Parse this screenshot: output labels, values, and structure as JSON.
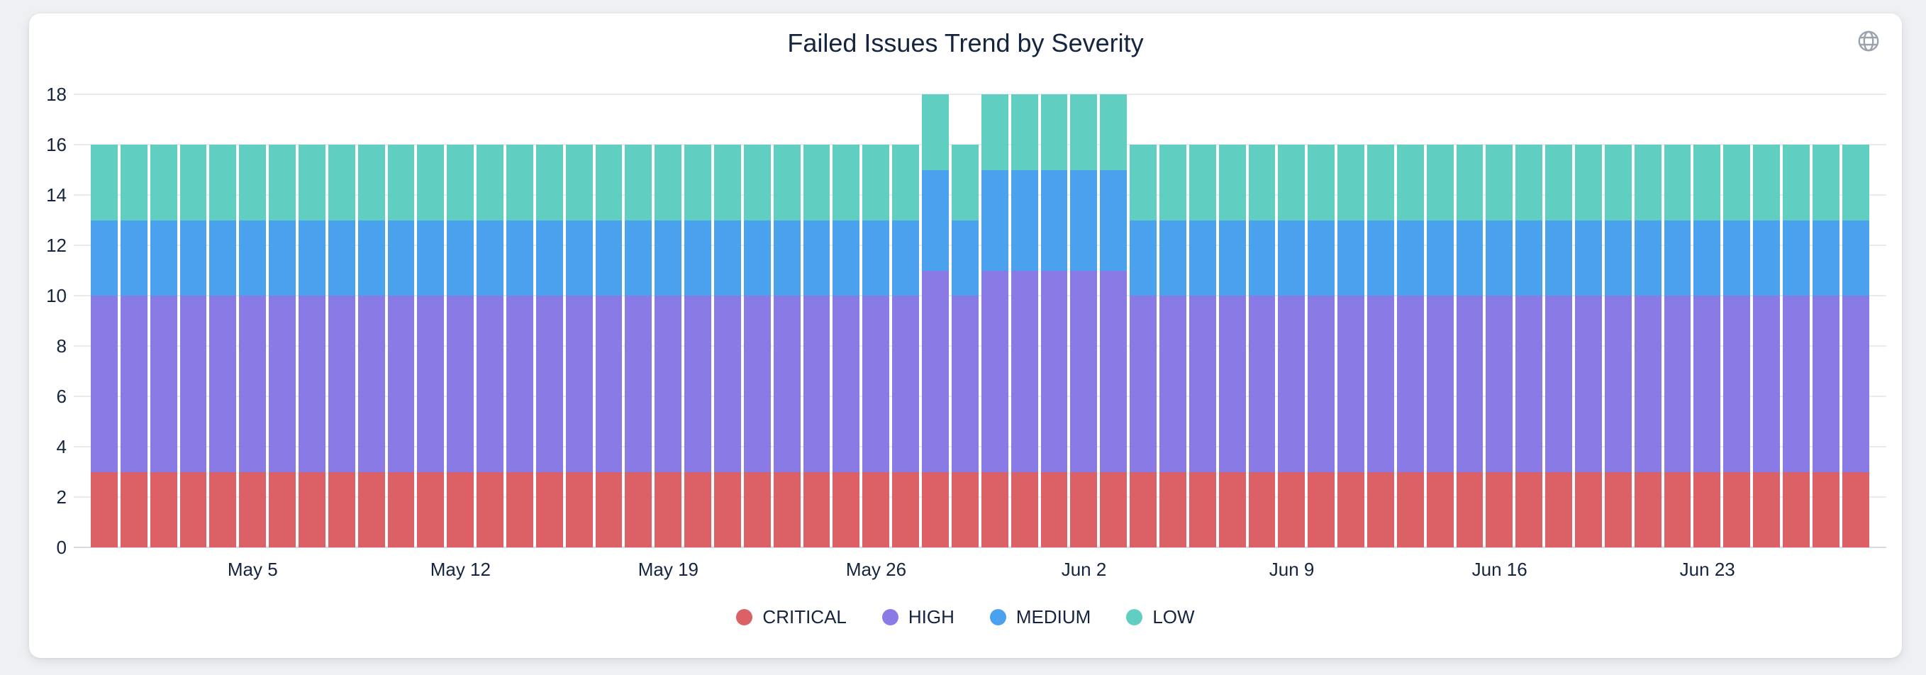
{
  "card": {
    "title": "Failed Issues Trend by Severity"
  },
  "icons": {
    "top_right": "globe-icon"
  },
  "colors": {
    "page_background": "#eef0f3",
    "card_background": "#ffffff",
    "text": "#15253f",
    "gridline": "#e9ebef",
    "axis_baseline": "#d7dce4",
    "icon_gray": "#9aa2ac",
    "critical": "#db6167",
    "high": "#8a7ae6",
    "medium": "#4aa2ee",
    "low": "#60cfc2"
  },
  "chart_data": {
    "type": "bar",
    "stacked": true,
    "title": "Failed Issues Trend by Severity",
    "grid": "horizontal",
    "bar_count": 60,
    "y_axis": {
      "range": [
        0,
        18
      ],
      "ticks": [
        0,
        2,
        4,
        6,
        8,
        10,
        12,
        14,
        16,
        18
      ]
    },
    "x_axis": {
      "tick_labels": [
        "May 5",
        "May 12",
        "May 19",
        "May 26",
        "Jun 2",
        "Jun 9",
        "Jun 16",
        "Jun 23"
      ],
      "tick_bar_indices": [
        5,
        12,
        19,
        26,
        33,
        40,
        47,
        54
      ]
    },
    "legend": {
      "position": "bottom",
      "labels": [
        "CRITICAL",
        "HIGH",
        "MEDIUM",
        "LOW"
      ]
    },
    "series": [
      {
        "name": "CRITICAL",
        "color": "#db6167",
        "values": [
          3,
          3,
          3,
          3,
          3,
          3,
          3,
          3,
          3,
          3,
          3,
          3,
          3,
          3,
          3,
          3,
          3,
          3,
          3,
          3,
          3,
          3,
          3,
          3,
          3,
          3,
          3,
          3,
          3,
          3,
          3,
          3,
          3,
          3,
          3,
          3,
          3,
          3,
          3,
          3,
          3,
          3,
          3,
          3,
          3,
          3,
          3,
          3,
          3,
          3,
          3,
          3,
          3,
          3,
          3,
          3,
          3,
          3,
          3,
          3
        ]
      },
      {
        "name": "HIGH",
        "color": "#8a7ae6",
        "values": [
          7,
          7,
          7,
          7,
          7,
          7,
          7,
          7,
          7,
          7,
          7,
          7,
          7,
          7,
          7,
          7,
          7,
          7,
          7,
          7,
          7,
          7,
          7,
          7,
          7,
          7,
          7,
          7,
          8,
          7,
          8,
          8,
          8,
          8,
          8,
          7,
          7,
          7,
          7,
          7,
          7,
          7,
          7,
          7,
          7,
          7,
          7,
          7,
          7,
          7,
          7,
          7,
          7,
          7,
          7,
          7,
          7,
          7,
          7,
          7
        ]
      },
      {
        "name": "MEDIUM",
        "color": "#4aa2ee",
        "values": [
          3,
          3,
          3,
          3,
          3,
          3,
          3,
          3,
          3,
          3,
          3,
          3,
          3,
          3,
          3,
          3,
          3,
          3,
          3,
          3,
          3,
          3,
          3,
          3,
          3,
          3,
          3,
          3,
          4,
          3,
          4,
          4,
          4,
          4,
          4,
          3,
          3,
          3,
          3,
          3,
          3,
          3,
          3,
          3,
          3,
          3,
          3,
          3,
          3,
          3,
          3,
          3,
          3,
          3,
          3,
          3,
          3,
          3,
          3,
          3
        ]
      },
      {
        "name": "LOW",
        "color": "#60cfc2",
        "values": [
          3,
          3,
          3,
          3,
          3,
          3,
          3,
          3,
          3,
          3,
          3,
          3,
          3,
          3,
          3,
          3,
          3,
          3,
          3,
          3,
          3,
          3,
          3,
          3,
          3,
          3,
          3,
          3,
          3,
          3,
          3,
          3,
          3,
          3,
          3,
          3,
          3,
          3,
          3,
          3,
          3,
          3,
          3,
          3,
          3,
          3,
          3,
          3,
          3,
          3,
          3,
          3,
          3,
          3,
          3,
          3,
          3,
          3,
          3,
          3
        ]
      }
    ]
  }
}
